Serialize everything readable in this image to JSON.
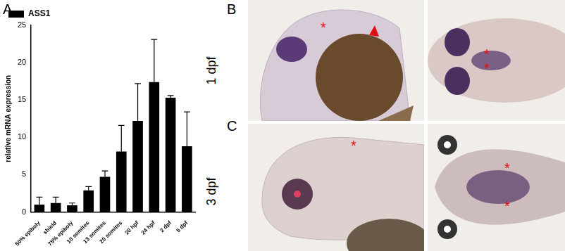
{
  "chart_data": {
    "type": "bar",
    "categories": [
      "50% epiboly",
      "shield",
      "75% epiboly",
      "10 somites",
      "13 somites",
      "20 somites",
      "20 hpf",
      "24 hpf",
      "2 dpf",
      "5 dpf"
    ],
    "series": [
      {
        "name": "ASS1",
        "color": "#000000",
        "values": [
          1.0,
          1.2,
          0.9,
          2.9,
          4.7,
          8.1,
          12.2,
          17.4,
          15.3,
          8.8
        ],
        "errors": [
          1.0,
          0.8,
          0.3,
          0.5,
          0.8,
          3.5,
          5.0,
          5.7,
          0.3,
          4.6
        ]
      }
    ],
    "y_label": "relative mRNA expression",
    "ylim": [
      0,
      25
    ],
    "yticks": [
      0,
      5,
      10,
      15,
      20,
      25
    ],
    "grid": false,
    "legend": "upper left"
  },
  "figure": {
    "panel_labels": [
      "A",
      "B",
      "C"
    ],
    "rows": [
      "1 dpf",
      "3 dpf"
    ],
    "asterisk": "*"
  }
}
